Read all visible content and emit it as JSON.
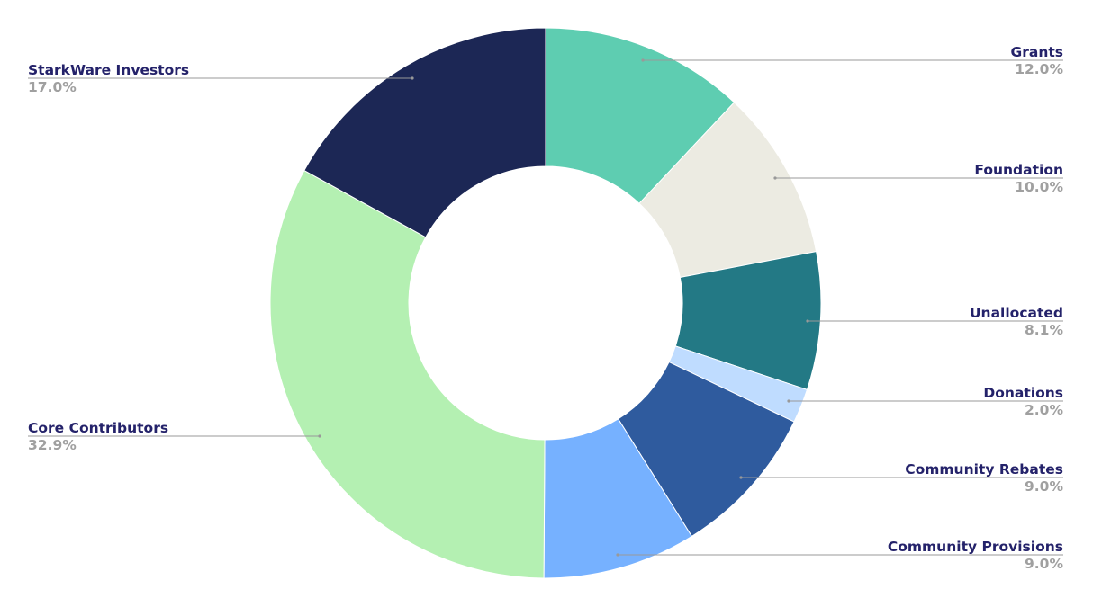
{
  "chart_data": {
    "type": "pie",
    "donut": true,
    "start": "top, clockwise",
    "slices": [
      {
        "label": "Grants",
        "value": 12.0,
        "display": "12.0%",
        "color": "#5ecdb1"
      },
      {
        "label": "Foundation",
        "value": 10.0,
        "display": "10.0%",
        "color": "#ecebe2"
      },
      {
        "label": "Unallocated",
        "value": 8.1,
        "display": "8.1%",
        "color": "#237985"
      },
      {
        "label": "Donations",
        "value": 2.0,
        "display": "2.0%",
        "color": "#bfdcff"
      },
      {
        "label": "Community Rebates",
        "value": 9.0,
        "display": "9.0%",
        "color": "#2f5b9e"
      },
      {
        "label": "Community Provisions",
        "value": 9.0,
        "display": "9.0%",
        "color": "#76b1ff"
      },
      {
        "label": "Core Contributors",
        "value": 32.9,
        "display": "32.9%",
        "color": "#b4f0b2"
      },
      {
        "label": "StarkWare Investors",
        "value": 17.0,
        "display": "17.0%",
        "color": "#1c2755"
      }
    ],
    "label_colors": {
      "name": "#24226a",
      "percent": "#a0a0a0",
      "leader": "#999999"
    }
  }
}
